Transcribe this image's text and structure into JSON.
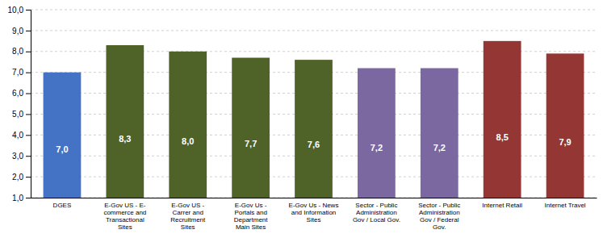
{
  "chart_data": {
    "type": "bar",
    "categories": [
      "DGES",
      "E-Gov US - E-\ncommerce and\nTransactional\nSites",
      "E-Gov US -\nCarrer and\nRecruitment\nSites",
      "E-Gov Us -\nPortals and\nDepartment\nMain Sites",
      "E-Gov Us - News\nand Information\nSites",
      "Sector - Public\nAdministration\nGov / Local Gov.",
      "Sector - Public\nAdministration\nGov / Federal\nGov.",
      "Internet Retail",
      "Internet Travel"
    ],
    "values": [
      7.0,
      8.3,
      8.0,
      7.7,
      7.6,
      7.2,
      7.2,
      8.5,
      7.9
    ],
    "value_labels": [
      "7,0",
      "8,3",
      "8,0",
      "7,7",
      "7,6",
      "7,2",
      "7,2",
      "8,5",
      "7,9"
    ],
    "data_labels": true,
    "colors": [
      "#4472C4",
      "#4F6228",
      "#4F6228",
      "#4F6228",
      "#4F6228",
      "#7B68A0",
      "#7B68A0",
      "#943634",
      "#943634"
    ],
    "ylim": [
      1.0,
      10.0
    ],
    "yticks": [
      {
        "value": 1.0,
        "label": "1,0"
      },
      {
        "value": 2.0,
        "label": "2,0"
      },
      {
        "value": 3.0,
        "label": "3,0"
      },
      {
        "value": 4.0,
        "label": "4,0"
      },
      {
        "value": 5.0,
        "label": "5,0"
      },
      {
        "value": 6.0,
        "label": "6,0"
      },
      {
        "value": 7.0,
        "label": "7,0"
      },
      {
        "value": 8.0,
        "label": "8,0"
      },
      {
        "value": 9.0,
        "label": "9,0"
      },
      {
        "value": 10.0,
        "label": "10,0"
      }
    ],
    "grid": true
  }
}
